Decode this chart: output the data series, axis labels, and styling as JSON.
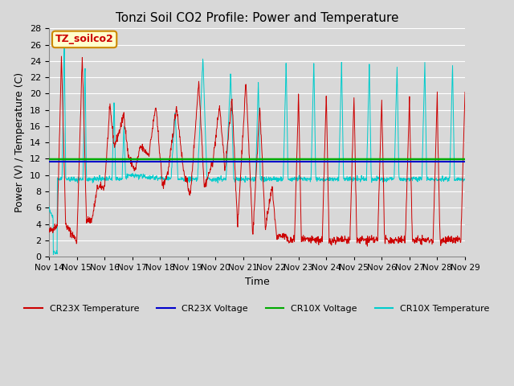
{
  "title": "Tonzi Soil CO2 Profile: Power and Temperature",
  "xlabel": "Time",
  "ylabel": "Power (V) / Temperature (C)",
  "ylim": [
    0,
    28
  ],
  "yticks": [
    0,
    2,
    4,
    6,
    8,
    10,
    12,
    14,
    16,
    18,
    20,
    22,
    24,
    26,
    28
  ],
  "xtick_labels": [
    "Nov 14",
    "Nov 15",
    "Nov 16",
    "Nov 17",
    "Nov 18",
    "Nov 19",
    "Nov 20",
    "Nov 21",
    "Nov 22",
    "Nov 23",
    "Nov 24",
    "Nov 25",
    "Nov 26",
    "Nov 27",
    "Nov 28",
    "Nov 29"
  ],
  "label_box_text": "TZ_soilco2",
  "label_box_facecolor": "#FFFFCC",
  "label_box_edgecolor": "#CC8800",
  "label_box_textcolor": "#CC0000",
  "cr23x_temp_color": "#CC0000",
  "cr23x_volt_color": "#0000CC",
  "cr10x_volt_color": "#00AA00",
  "cr10x_temp_color": "#00CCCC",
  "fig_facecolor": "#D8D8D8",
  "plot_bg_color": "#D8D8D8",
  "grid_color": "#FFFFFF",
  "cr23x_volt_value": 11.65,
  "cr10x_volt_value": 11.95
}
